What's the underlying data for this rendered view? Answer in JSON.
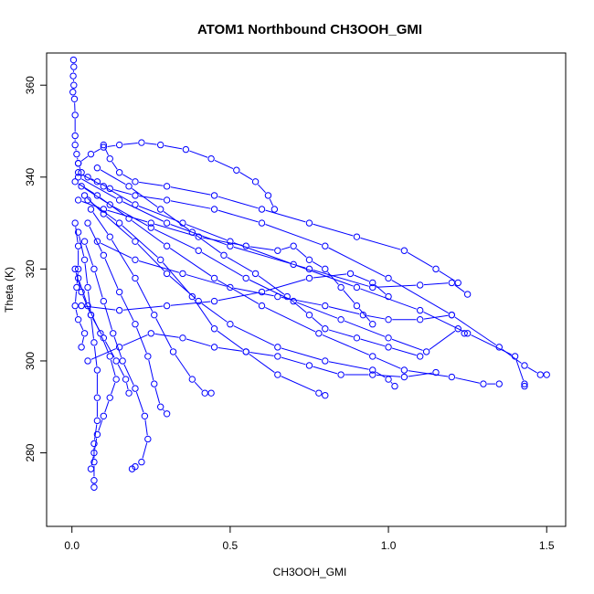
{
  "chart_data": {
    "type": "line",
    "title": "ATOM1 Northbound CH3OOH_GMI",
    "xlabel": "CH3OOH_GMI",
    "ylabel": "Theta (K)",
    "xlim": [
      -0.08,
      1.56
    ],
    "ylim": [
      264,
      367
    ],
    "xticks": [
      0.0,
      0.5,
      1.0,
      1.5
    ],
    "xtick_labels": [
      "0.0",
      "0.5",
      "1.0",
      "1.5"
    ],
    "yticks": [
      280,
      300,
      320,
      340,
      360
    ],
    "ytick_labels": [
      "280",
      "300",
      "320",
      "340",
      "360"
    ],
    "grid": false,
    "legend": "none",
    "marker": "open-circle",
    "colors": {
      "series": "#0000ff",
      "axis": "#000000"
    },
    "series": [
      {
        "points": [
          [
            0.005,
            365.5
          ],
          [
            0.006,
            364
          ],
          [
            0.004,
            362
          ],
          [
            0.006,
            360
          ],
          [
            0.003,
            358.5
          ],
          [
            0.008,
            357
          ],
          [
            0.01,
            353.5
          ],
          [
            0.01,
            349
          ],
          [
            0.01,
            347
          ],
          [
            0.015,
            345
          ],
          [
            0.02,
            343
          ],
          [
            0.03,
            341
          ],
          [
            0.05,
            340
          ],
          [
            0.08,
            339
          ],
          [
            0.12,
            337.5
          ],
          [
            0.2,
            336
          ],
          [
            0.3,
            335
          ],
          [
            0.45,
            333
          ],
          [
            0.6,
            330
          ],
          [
            0.8,
            325
          ],
          [
            1.0,
            318
          ],
          [
            1.2,
            310
          ],
          [
            1.35,
            303
          ],
          [
            1.43,
            299
          ],
          [
            1.48,
            297
          ],
          [
            1.5,
            297
          ]
        ]
      },
      {
        "points": [
          [
            0.02,
            343
          ],
          [
            0.06,
            345
          ],
          [
            0.1,
            346.5
          ],
          [
            0.15,
            347
          ],
          [
            0.22,
            347.5
          ],
          [
            0.28,
            347
          ],
          [
            0.36,
            346
          ],
          [
            0.44,
            344
          ],
          [
            0.52,
            341.5
          ],
          [
            0.58,
            339
          ],
          [
            0.62,
            336
          ],
          [
            0.64,
            333
          ]
        ]
      },
      {
        "points": [
          [
            0.02,
            341
          ],
          [
            0.1,
            338
          ],
          [
            0.2,
            334
          ],
          [
            0.35,
            330
          ],
          [
            0.5,
            326
          ],
          [
            0.7,
            321
          ],
          [
            0.9,
            316
          ],
          [
            1.1,
            311
          ],
          [
            1.25,
            306
          ],
          [
            1.4,
            301
          ],
          [
            1.43,
            295
          ],
          [
            1.43,
            294.5
          ]
        ]
      },
      {
        "points": [
          [
            0.01,
            339
          ],
          [
            0.08,
            336
          ],
          [
            0.18,
            331
          ],
          [
            0.3,
            325
          ],
          [
            0.45,
            318
          ],
          [
            0.6,
            312
          ],
          [
            0.78,
            306
          ],
          [
            0.95,
            301
          ],
          [
            1.05,
            298
          ],
          [
            1.2,
            296.5
          ],
          [
            1.3,
            295
          ],
          [
            1.35,
            295
          ]
        ]
      },
      {
        "points": [
          [
            0.02,
            340
          ],
          [
            0.15,
            335
          ],
          [
            0.3,
            330
          ],
          [
            0.5,
            325
          ],
          [
            0.75,
            320
          ],
          [
            0.95,
            316
          ],
          [
            1.1,
            316.5
          ],
          [
            1.2,
            317
          ],
          [
            1.25,
            314.5
          ]
        ]
      },
      {
        "points": [
          [
            0.03,
            338
          ],
          [
            0.12,
            334
          ],
          [
            0.25,
            329
          ],
          [
            0.4,
            324
          ],
          [
            0.55,
            318
          ],
          [
            0.7,
            313
          ],
          [
            0.85,
            309
          ],
          [
            1.0,
            305
          ],
          [
            1.12,
            302
          ],
          [
            1.22,
            307
          ],
          [
            1.24,
            306
          ]
        ]
      },
      {
        "points": [
          [
            0.04,
            336
          ],
          [
            0.1,
            332
          ],
          [
            0.2,
            326
          ],
          [
            0.3,
            319
          ],
          [
            0.4,
            313
          ],
          [
            0.5,
            308
          ],
          [
            0.65,
            303
          ],
          [
            0.8,
            300
          ],
          [
            0.95,
            298
          ],
          [
            1.0,
            296
          ],
          [
            1.02,
            294.5
          ]
        ]
      },
      {
        "points": [
          [
            0.05,
            335
          ],
          [
            0.15,
            330
          ],
          [
            0.28,
            322
          ],
          [
            0.38,
            314
          ],
          [
            0.45,
            307
          ],
          [
            0.55,
            302
          ],
          [
            0.65,
            297
          ],
          [
            0.78,
            293
          ],
          [
            0.8,
            292.5
          ]
        ]
      },
      {
        "points": [
          [
            0.06,
            333
          ],
          [
            0.12,
            327
          ],
          [
            0.2,
            318
          ],
          [
            0.26,
            310
          ],
          [
            0.32,
            302
          ],
          [
            0.38,
            296
          ],
          [
            0.42,
            293
          ],
          [
            0.44,
            293
          ]
        ]
      },
      {
        "points": [
          [
            0.05,
            330
          ],
          [
            0.1,
            323
          ],
          [
            0.15,
            315
          ],
          [
            0.2,
            308
          ],
          [
            0.24,
            301
          ],
          [
            0.26,
            295
          ],
          [
            0.28,
            290
          ],
          [
            0.3,
            288.5
          ]
        ]
      },
      {
        "points": [
          [
            0.04,
            326
          ],
          [
            0.07,
            320
          ],
          [
            0.1,
            313
          ],
          [
            0.13,
            306
          ],
          [
            0.16,
            300
          ],
          [
            0.2,
            294
          ],
          [
            0.23,
            288
          ],
          [
            0.24,
            283
          ],
          [
            0.22,
            278
          ],
          [
            0.2,
            277
          ],
          [
            0.19,
            276.5
          ]
        ]
      },
      {
        "points": [
          [
            0.02,
            328
          ],
          [
            0.04,
            322
          ],
          [
            0.05,
            316
          ],
          [
            0.06,
            310
          ],
          [
            0.07,
            304
          ],
          [
            0.08,
            298
          ],
          [
            0.08,
            292
          ],
          [
            0.08,
            287
          ],
          [
            0.07,
            282
          ],
          [
            0.07,
            278
          ],
          [
            0.07,
            274
          ],
          [
            0.07,
            272.5
          ]
        ]
      },
      {
        "points": [
          [
            0.02,
            318
          ],
          [
            0.05,
            312
          ],
          [
            0.09,
            306
          ],
          [
            0.12,
            301
          ],
          [
            0.14,
            296
          ],
          [
            0.12,
            292
          ],
          [
            0.1,
            288
          ],
          [
            0.08,
            284
          ],
          [
            0.07,
            280
          ],
          [
            0.06,
            276.5
          ]
        ]
      },
      {
        "points": [
          [
            0.01,
            320
          ],
          [
            0.03,
            315
          ],
          [
            0.06,
            310
          ],
          [
            0.1,
            305
          ],
          [
            0.14,
            300
          ],
          [
            0.17,
            296
          ],
          [
            0.18,
            293
          ]
        ]
      },
      {
        "points": [
          [
            0.01,
            330
          ],
          [
            0.02,
            325
          ],
          [
            0.02,
            320
          ],
          [
            0.015,
            316
          ],
          [
            0.01,
            312
          ],
          [
            0.02,
            309
          ],
          [
            0.04,
            306
          ],
          [
            0.03,
            303
          ]
        ]
      },
      {
        "points": [
          [
            0.1,
            347
          ],
          [
            0.12,
            344
          ],
          [
            0.15,
            341
          ],
          [
            0.2,
            339
          ],
          [
            0.3,
            338
          ],
          [
            0.45,
            336
          ],
          [
            0.6,
            333
          ],
          [
            0.75,
            330
          ],
          [
            0.9,
            327
          ],
          [
            1.05,
            324
          ],
          [
            1.15,
            320
          ],
          [
            1.22,
            317
          ]
        ]
      },
      {
        "points": [
          [
            0.08,
            326
          ],
          [
            0.2,
            322
          ],
          [
            0.35,
            319
          ],
          [
            0.5,
            316
          ],
          [
            0.65,
            314
          ],
          [
            0.8,
            312
          ],
          [
            0.92,
            310
          ],
          [
            1.0,
            309
          ],
          [
            1.1,
            309
          ],
          [
            1.2,
            310
          ]
        ]
      },
      {
        "points": [
          [
            0.03,
            312
          ],
          [
            0.15,
            311
          ],
          [
            0.3,
            312
          ],
          [
            0.45,
            313
          ],
          [
            0.6,
            315
          ],
          [
            0.75,
            318
          ],
          [
            0.88,
            319
          ],
          [
            0.95,
            317
          ],
          [
            1.0,
            314
          ]
        ]
      },
      {
        "points": [
          [
            0.02,
            335
          ],
          [
            0.1,
            333
          ],
          [
            0.25,
            330
          ],
          [
            0.4,
            327
          ],
          [
            0.55,
            325
          ],
          [
            0.65,
            324
          ],
          [
            0.7,
            325
          ],
          [
            0.75,
            322
          ],
          [
            0.8,
            320
          ],
          [
            0.85,
            316
          ],
          [
            0.9,
            312
          ],
          [
            0.95,
            308
          ]
        ]
      },
      {
        "points": [
          [
            0.05,
            300
          ],
          [
            0.15,
            303
          ],
          [
            0.25,
            306
          ],
          [
            0.35,
            305
          ],
          [
            0.45,
            303
          ],
          [
            0.55,
            302
          ],
          [
            0.65,
            301
          ],
          [
            0.75,
            299
          ],
          [
            0.85,
            297
          ],
          [
            0.95,
            297
          ],
          [
            1.05,
            296.5
          ],
          [
            1.15,
            297.5
          ]
        ]
      },
      {
        "points": [
          [
            0.08,
            342
          ],
          [
            0.18,
            338
          ],
          [
            0.28,
            333
          ],
          [
            0.38,
            328
          ],
          [
            0.48,
            323
          ],
          [
            0.58,
            319
          ],
          [
            0.68,
            314
          ],
          [
            0.75,
            310
          ],
          [
            0.8,
            307
          ],
          [
            0.9,
            305
          ],
          [
            1.0,
            303
          ],
          [
            1.1,
            301
          ]
        ]
      }
    ]
  }
}
